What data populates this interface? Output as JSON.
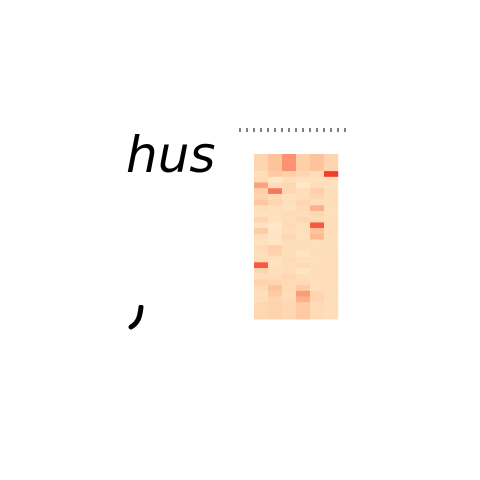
{
  "title_fragment": "hus",
  "chart_data": {
    "type": "heatmap",
    "columns": 6,
    "rows": 29,
    "values": [
      [
        0.3,
        0.45,
        0.65,
        0.35,
        0.45,
        0.3
      ],
      [
        0.3,
        0.45,
        0.65,
        0.35,
        0.45,
        0.3
      ],
      [
        0.3,
        0.45,
        0.65,
        0.35,
        0.45,
        0.3
      ],
      [
        0.22,
        0.4,
        0.35,
        0.28,
        0.22,
        0.95
      ],
      [
        0.25,
        0.12,
        0.2,
        0.18,
        0.18,
        0.2
      ],
      [
        0.6,
        0.22,
        0.28,
        0.12,
        0.2,
        0.18
      ],
      [
        0.35,
        0.75,
        0.28,
        0.22,
        0.35,
        0.2
      ],
      [
        0.32,
        0.24,
        0.18,
        0.22,
        0.28,
        0.22
      ],
      [
        0.42,
        0.3,
        0.2,
        0.3,
        0.22,
        0.22
      ],
      [
        0.22,
        0.2,
        0.18,
        0.25,
        0.55,
        0.2
      ],
      [
        0.18,
        0.2,
        0.25,
        0.22,
        0.28,
        0.2
      ],
      [
        0.3,
        0.18,
        0.22,
        0.28,
        0.22,
        0.22
      ],
      [
        0.18,
        0.12,
        0.25,
        0.2,
        0.85,
        0.22
      ],
      [
        0.38,
        0.15,
        0.22,
        0.2,
        0.45,
        0.22
      ],
      [
        0.22,
        0.16,
        0.28,
        0.18,
        0.52,
        0.2
      ],
      [
        0.18,
        0.15,
        0.22,
        0.22,
        0.2,
        0.22
      ],
      [
        0.25,
        0.35,
        0.22,
        0.2,
        0.2,
        0.2
      ],
      [
        0.2,
        0.3,
        0.22,
        0.15,
        0.22,
        0.22
      ],
      [
        0.22,
        0.18,
        0.25,
        0.2,
        0.2,
        0.22
      ],
      [
        0.85,
        0.18,
        0.22,
        0.25,
        0.2,
        0.22
      ],
      [
        0.28,
        0.2,
        0.22,
        0.15,
        0.22,
        0.22
      ],
      [
        0.22,
        0.22,
        0.28,
        0.2,
        0.22,
        0.22
      ],
      [
        0.32,
        0.3,
        0.25,
        0.25,
        0.2,
        0.22
      ],
      [
        0.25,
        0.45,
        0.25,
        0.38,
        0.2,
        0.22
      ],
      [
        0.2,
        0.38,
        0.22,
        0.62,
        0.3,
        0.22
      ],
      [
        0.22,
        0.3,
        0.25,
        0.55,
        0.3,
        0.22
      ],
      [
        0.28,
        0.32,
        0.28,
        0.4,
        0.25,
        0.22
      ],
      [
        0.28,
        0.32,
        0.28,
        0.4,
        0.25,
        0.22
      ],
      [
        0.28,
        0.32,
        0.28,
        0.4,
        0.25,
        0.22
      ]
    ],
    "colors": {
      "low": "#fff5d6",
      "mid": "#fdbf96",
      "high": "#f52d1f"
    },
    "grid": false
  }
}
